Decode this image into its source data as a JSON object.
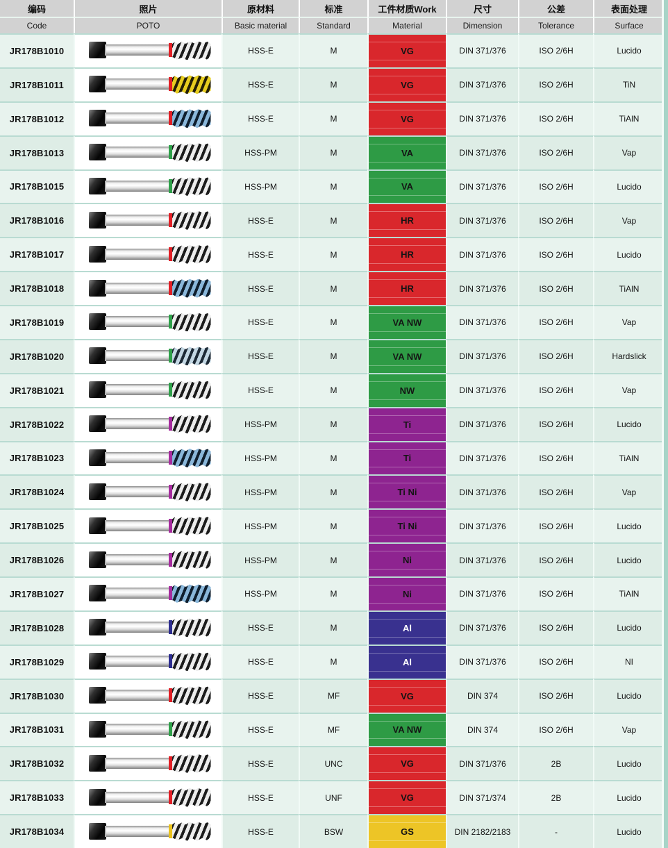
{
  "header": {
    "columns": [
      {
        "zh": "编码",
        "en": "Code"
      },
      {
        "zh": "照片",
        "en": "POTO"
      },
      {
        "zh": "原材料",
        "en": "Basic material"
      },
      {
        "zh": "标准",
        "en": "Standard"
      },
      {
        "zh": "工件材质Work",
        "en": "Material"
      },
      {
        "zh": "尺寸",
        "en": "Dimension"
      },
      {
        "zh": "公差",
        "en": "Tolerance"
      },
      {
        "zh": "表面处理",
        "en": "Surface"
      }
    ]
  },
  "work_colors": {
    "red": {
      "bg": "#d9272c",
      "text": "#141414"
    },
    "green": {
      "bg": "#2e9b45",
      "text": "#141414"
    },
    "purple": {
      "bg": "#8e2490",
      "text": "#141414"
    },
    "indigo": {
      "bg": "#39318f",
      "text": "#ffffff"
    },
    "yellow": {
      "bg": "#edc526",
      "text": "#141414"
    }
  },
  "ring_colors": {
    "red": "#e11f26",
    "green": "#2fa04a",
    "purple": "#a62c9e",
    "blue": "#2d2d8f",
    "yellow": "#e9c11d"
  },
  "tip_tints": {
    "steel": {
      "dark": "#1c1c1c",
      "light": "#ececec"
    },
    "yellow": {
      "dark": "#241f06",
      "light": "#e7cd1f"
    },
    "blue": {
      "dark": "#101f2e",
      "light": "#8ab7da"
    },
    "hardslick": {
      "dark": "#1d2a36",
      "light": "#c3d7e3"
    }
  },
  "rows": [
    {
      "code": "JR178B1010",
      "photo": {
        "ring": "red",
        "tip": "steel"
      },
      "basic_material": "HSS-E",
      "standard": "M",
      "work_material": "VG",
      "work_color": "red",
      "dimension": "DIN 371/376",
      "tolerance": "ISO 2/6H",
      "surface": "Lucido"
    },
    {
      "code": "JR178B1011",
      "photo": {
        "ring": "red",
        "tip": "yellow"
      },
      "basic_material": "HSS-E",
      "standard": "M",
      "work_material": "VG",
      "work_color": "red",
      "dimension": "DIN 371/376",
      "tolerance": "ISO 2/6H",
      "surface": "TiN"
    },
    {
      "code": "JR178B1012",
      "photo": {
        "ring": "red",
        "tip": "blue"
      },
      "basic_material": "HSS-E",
      "standard": "M",
      "work_material": "VG",
      "work_color": "red",
      "dimension": "DIN 371/376",
      "tolerance": "ISO 2/6H",
      "surface": "TiAlN"
    },
    {
      "code": "JR178B1013",
      "photo": {
        "ring": "green",
        "tip": "steel"
      },
      "basic_material": "HSS-PM",
      "standard": "M",
      "work_material": "VA",
      "work_color": "green",
      "dimension": "DIN 371/376",
      "tolerance": "ISO 2/6H",
      "surface": "Vap"
    },
    {
      "code": "JR178B1015",
      "photo": {
        "ring": "green",
        "tip": "steel"
      },
      "basic_material": "HSS-PM",
      "standard": "M",
      "work_material": "VA",
      "work_color": "green",
      "dimension": "DIN 371/376",
      "tolerance": "ISO 2/6H",
      "surface": "Lucido"
    },
    {
      "code": "JR178B1016",
      "photo": {
        "ring": "red",
        "tip": "steel"
      },
      "basic_material": "HSS-E",
      "standard": "M",
      "work_material": "HR",
      "work_color": "red",
      "dimension": "DIN 371/376",
      "tolerance": "ISO 2/6H",
      "surface": "Vap"
    },
    {
      "code": "JR178B1017",
      "photo": {
        "ring": "red",
        "tip": "steel"
      },
      "basic_material": "HSS-E",
      "standard": "M",
      "work_material": "HR",
      "work_color": "red",
      "dimension": "DIN 371/376",
      "tolerance": "ISO 2/6H",
      "surface": "Lucido"
    },
    {
      "code": "JR178B1018",
      "photo": {
        "ring": "red",
        "tip": "blue"
      },
      "basic_material": "HSS-E",
      "standard": "M",
      "work_material": "HR",
      "work_color": "red",
      "dimension": "DIN 371/376",
      "tolerance": "ISO 2/6H",
      "surface": "TiAlN"
    },
    {
      "code": "JR178B1019",
      "photo": {
        "ring": "green",
        "tip": "steel"
      },
      "basic_material": "HSS-E",
      "standard": "M",
      "work_material": "VA NW",
      "work_color": "green",
      "dimension": "DIN 371/376",
      "tolerance": "ISO 2/6H",
      "surface": "Vap"
    },
    {
      "code": "JR178B1020",
      "photo": {
        "ring": "green",
        "tip": "hardslick"
      },
      "basic_material": "HSS-E",
      "standard": "M",
      "work_material": "VA NW",
      "work_color": "green",
      "dimension": "DIN 371/376",
      "tolerance": "ISO 2/6H",
      "surface": "Hardslick"
    },
    {
      "code": "JR178B1021",
      "photo": {
        "ring": "green",
        "tip": "steel"
      },
      "basic_material": "HSS-E",
      "standard": "M",
      "work_material": "NW",
      "work_color": "green",
      "dimension": "DIN 371/376",
      "tolerance": "ISO 2/6H",
      "surface": "Vap"
    },
    {
      "code": "JR178B1022",
      "photo": {
        "ring": "purple",
        "tip": "steel"
      },
      "basic_material": "HSS-PM",
      "standard": "M",
      "work_material": "Ti",
      "work_color": "purple",
      "dimension": "DIN 371/376",
      "tolerance": "ISO 2/6H",
      "surface": "Lucido"
    },
    {
      "code": "JR178B1023",
      "photo": {
        "ring": "purple",
        "tip": "blue"
      },
      "basic_material": "HSS-PM",
      "standard": "M",
      "work_material": "Ti",
      "work_color": "purple",
      "dimension": "DIN 371/376",
      "tolerance": "ISO 2/6H",
      "surface": "TiAlN"
    },
    {
      "code": "JR178B1024",
      "photo": {
        "ring": "purple",
        "tip": "steel"
      },
      "basic_material": "HSS-PM",
      "standard": "M",
      "work_material": "Ti Ni",
      "work_color": "purple",
      "dimension": "DIN 371/376",
      "tolerance": "ISO 2/6H",
      "surface": "Vap"
    },
    {
      "code": "JR178B1025",
      "photo": {
        "ring": "purple",
        "tip": "steel"
      },
      "basic_material": "HSS-PM",
      "standard": "M",
      "work_material": "Ti Ni",
      "work_color": "purple",
      "dimension": "DIN 371/376",
      "tolerance": "ISO 2/6H",
      "surface": "Lucido"
    },
    {
      "code": "JR178B1026",
      "photo": {
        "ring": "purple",
        "tip": "steel"
      },
      "basic_material": "HSS-PM",
      "standard": "M",
      "work_material": "Ni",
      "work_color": "purple",
      "dimension": "DIN 371/376",
      "tolerance": "ISO 2/6H",
      "surface": "Lucido"
    },
    {
      "code": "JR178B1027",
      "photo": {
        "ring": "purple",
        "tip": "blue"
      },
      "basic_material": "HSS-PM",
      "standard": "M",
      "work_material": "Ni",
      "work_color": "purple",
      "dimension": "DIN 371/376",
      "tolerance": "ISO 2/6H",
      "surface": "TiAlN"
    },
    {
      "code": "JR178B1028",
      "photo": {
        "ring": "blue",
        "tip": "steel"
      },
      "basic_material": "HSS-E",
      "standard": "M",
      "work_material": "Al",
      "work_color": "indigo",
      "dimension": "DIN 371/376",
      "tolerance": "ISO 2/6H",
      "surface": "Lucido"
    },
    {
      "code": "JR178B1029",
      "photo": {
        "ring": "blue",
        "tip": "steel"
      },
      "basic_material": "HSS-E",
      "standard": "M",
      "work_material": "Al",
      "work_color": "indigo",
      "dimension": "DIN 371/376",
      "tolerance": "ISO 2/6H",
      "surface": "NI"
    },
    {
      "code": "JR178B1030",
      "photo": {
        "ring": "red",
        "tip": "steel"
      },
      "basic_material": "HSS-E",
      "standard": "MF",
      "work_material": "VG",
      "work_color": "red",
      "dimension": "DIN 374",
      "tolerance": "ISO 2/6H",
      "surface": "Lucido"
    },
    {
      "code": "JR178B1031",
      "photo": {
        "ring": "green",
        "tip": "steel"
      },
      "basic_material": "HSS-E",
      "standard": "MF",
      "work_material": "VA NW",
      "work_color": "green",
      "dimension": "DIN 374",
      "tolerance": "ISO 2/6H",
      "surface": "Vap"
    },
    {
      "code": "JR178B1032",
      "photo": {
        "ring": "red",
        "tip": "steel"
      },
      "basic_material": "HSS-E",
      "standard": "UNC",
      "work_material": "VG",
      "work_color": "red",
      "dimension": "DIN 371/376",
      "tolerance": "2B",
      "surface": "Lucido"
    },
    {
      "code": "JR178B1033",
      "photo": {
        "ring": "red",
        "tip": "steel"
      },
      "basic_material": "HSS-E",
      "standard": "UNF",
      "work_material": "VG",
      "work_color": "red",
      "dimension": "DIN 371/374",
      "tolerance": "2B",
      "surface": "Lucido"
    },
    {
      "code": "JR178B1034",
      "photo": {
        "ring": "yellow",
        "tip": "steel"
      },
      "basic_material": "HSS-E",
      "standard": "BSW",
      "work_material": "GS",
      "work_color": "yellow",
      "dimension": "DIN 2182/2183",
      "tolerance": "-",
      "surface": "Lucido"
    }
  ]
}
